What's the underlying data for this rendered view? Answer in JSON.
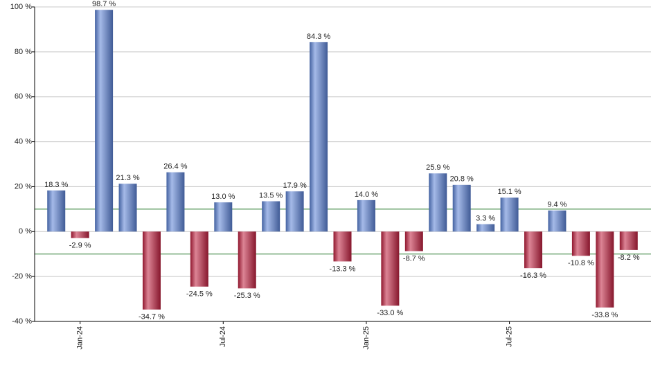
{
  "chart_data": {
    "type": "bar",
    "categories": [
      null,
      "Jan-24",
      null,
      null,
      null,
      null,
      null,
      "Jul-24",
      null,
      null,
      null,
      null,
      null,
      "Jan-25",
      null,
      null,
      null,
      null,
      null,
      "Jul-25",
      null,
      null,
      null,
      null,
      null
    ],
    "values": [
      18.3,
      -2.9,
      98.7,
      21.3,
      -34.7,
      26.4,
      -24.5,
      13.0,
      -25.3,
      13.5,
      17.9,
      84.3,
      -13.3,
      14.0,
      -33.0,
      -8.7,
      25.9,
      20.8,
      3.3,
      15.1,
      -16.3,
      9.4,
      -10.8,
      -33.8,
      -8.2
    ],
    "value_labels": [
      "18.3 %",
      "-2.9 %",
      "98.7 %",
      "21.3 %",
      "-34.7 %",
      "26.4 %",
      "-24.5 %",
      "13.0 %",
      "-25.3 %",
      "13.5 %",
      "17.9 %",
      "84.3 %",
      "-13.3 %",
      "14.0 %",
      "-33.0 %",
      "-8.7 %",
      "25.9 %",
      "20.8 %",
      "3.3 %",
      "15.1 %",
      "-16.3 %",
      "9.4 %",
      "-10.8 %",
      "-33.8 %",
      "-8.2 %"
    ],
    "positive_color": "#5b82d6",
    "negative_color": "#c0203f",
    "ylim": [
      -40,
      100
    ],
    "yticks": [
      {
        "value": -40,
        "label": "-40 %"
      },
      {
        "value": -20,
        "label": "-20 %"
      },
      {
        "value": 0,
        "label": "0 %"
      },
      {
        "value": 20,
        "label": "20 %"
      },
      {
        "value": 40,
        "label": "40 %"
      },
      {
        "value": 60,
        "label": "60 %"
      },
      {
        "value": 80,
        "label": "80 %"
      },
      {
        "value": 100,
        "label": "100 %"
      }
    ],
    "grid": true,
    "reference_lines": [
      {
        "value": 10,
        "color": "#2e7d32"
      },
      {
        "value": -10,
        "color": "#2e7d32"
      }
    ]
  }
}
